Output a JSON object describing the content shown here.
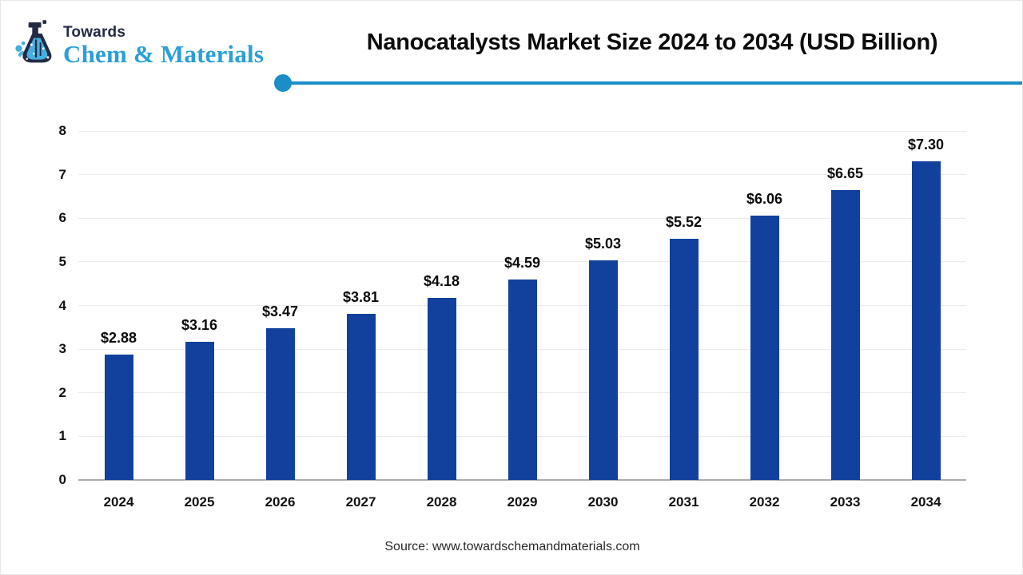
{
  "brand": {
    "top_text": "Towards",
    "bottom_text": "Chem & Materials"
  },
  "header": {
    "title": "Nanocatalysts Market Size 2024 to 2034 (USD Billion)"
  },
  "footer": {
    "source": "Source: www.towardschemandmaterials.com"
  },
  "colors": {
    "bar": "#11419D",
    "accent": "#1B8DC7",
    "brand_blue": "#2B9FD6",
    "brand_navy": "#232A44",
    "gridline": "#ECECEC",
    "axis_line": "#ADADAD"
  },
  "chart_data": {
    "type": "bar",
    "title": "Nanocatalysts Market Size 2024 to 2034 (USD Billion)",
    "categories": [
      "2024",
      "2025",
      "2026",
      "2027",
      "2028",
      "2029",
      "2030",
      "2031",
      "2032",
      "2033",
      "2034"
    ],
    "values": [
      2.88,
      3.16,
      3.47,
      3.81,
      4.18,
      4.59,
      5.03,
      5.52,
      6.06,
      6.65,
      7.3
    ],
    "value_labels": [
      "$2.88",
      "$3.16",
      "$3.47",
      "$3.81",
      "$4.18",
      "$4.59",
      "$5.03",
      "$5.52",
      "$6.06",
      "$6.65",
      "$7.30"
    ],
    "xlabel": "",
    "ylabel": "",
    "ylim": [
      0,
      8
    ],
    "ytick_step": 1,
    "yticks": [
      0,
      1,
      2,
      3,
      4,
      5,
      6,
      7,
      8
    ],
    "grid": true,
    "legend": "none"
  }
}
